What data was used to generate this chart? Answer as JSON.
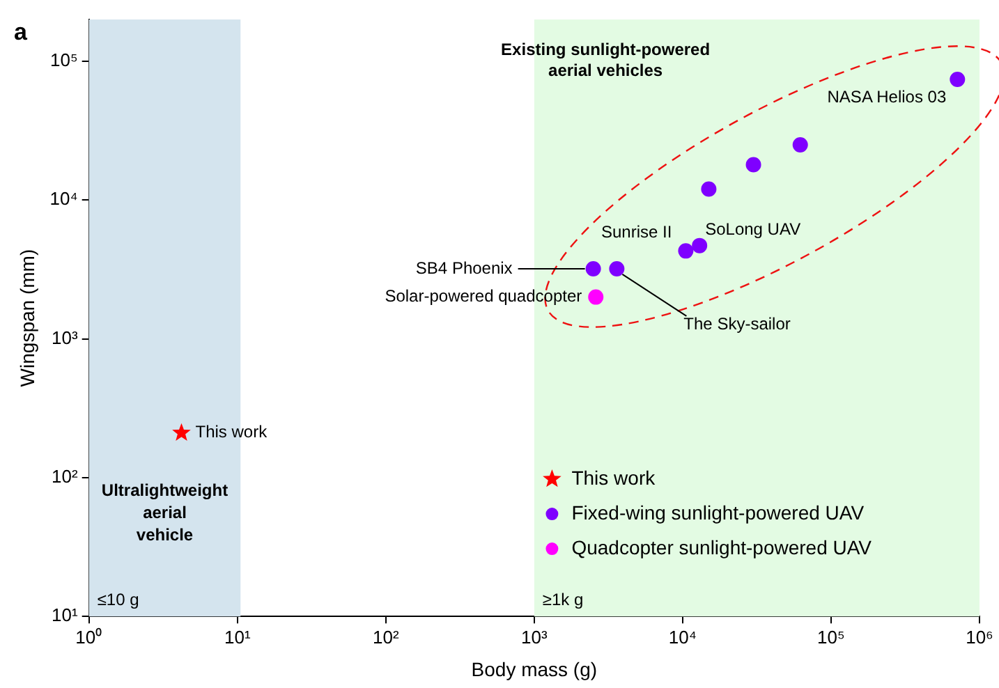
{
  "chart_data": {
    "type": "scatter",
    "xlabel": "Body mass (g)",
    "ylabel": "Wingspan (mm)",
    "log": "xy",
    "grid": false,
    "legend": "bottom right",
    "xlim": [
      1,
      1000000
    ],
    "ylim": [
      10,
      200000
    ],
    "xticks": [
      {
        "value": 1,
        "label": "10⁰"
      },
      {
        "value": 10,
        "label": "10¹"
      },
      {
        "value": 100,
        "label": "10²"
      },
      {
        "value": 1000,
        "label": "10³"
      },
      {
        "value": 10000,
        "label": "10⁴"
      },
      {
        "value": 100000,
        "label": "10⁵"
      },
      {
        "value": 1000000,
        "label": "10⁶"
      }
    ],
    "yticks": [
      {
        "value": 10,
        "label": "10¹"
      },
      {
        "value": 100,
        "label": "10²"
      },
      {
        "value": 1000,
        "label": "10³"
      },
      {
        "value": 10000,
        "label": "10⁴"
      },
      {
        "value": 100000,
        "label": "10⁵"
      }
    ],
    "series": [
      {
        "name": "This work",
        "color": "#ff0000",
        "marker": "star",
        "x": [
          4.2
        ],
        "values": [
          210
        ]
      },
      {
        "name": "Fixed-wing sunlight-powered UAV",
        "color": "#7f00ff",
        "marker": "circle",
        "x": [
          710000,
          62000,
          30000,
          15000,
          13000,
          10500,
          2500,
          3600
        ],
        "values": [
          74000,
          25000,
          18000,
          12000,
          4700,
          4300,
          3200,
          3200
        ]
      },
      {
        "name": "Quadcopter sunlight-powered UAV",
        "color": "#ff00ff",
        "marker": "circle",
        "x": [
          2600
        ],
        "values": [
          2000
        ]
      }
    ],
    "bands": [
      {
        "axis": "x",
        "from": 1,
        "to": 10.5,
        "label": "≤10 g",
        "color": "#d4e4ee"
      },
      {
        "axis": "x",
        "from": 1000,
        "to": 1000000,
        "label": "≥1k g",
        "color": "#e3fbe3"
      }
    ],
    "annotations": [
      "a",
      "Existing sunlight-powered aerial vehicles",
      "Ultralightweight aerial vehicle",
      {
        "text": "This work",
        "x": 4.2,
        "y": 210
      },
      {
        "text": "NASA Helios 03",
        "x": 710000,
        "y": 74000
      },
      {
        "text": "Sunrise II",
        "x": 10500,
        "y": 4300
      },
      {
        "text": "SoLong UAV",
        "x": 13000,
        "y": 4700
      },
      {
        "text": "SB4 Phoenix",
        "x": 2500,
        "y": 3200
      },
      {
        "text": "The Sky-sailor",
        "x": 3600,
        "y": 3200
      },
      {
        "text": "Solar-powered quadcopter",
        "x": 2600,
        "y": 2000
      }
    ]
  }
}
